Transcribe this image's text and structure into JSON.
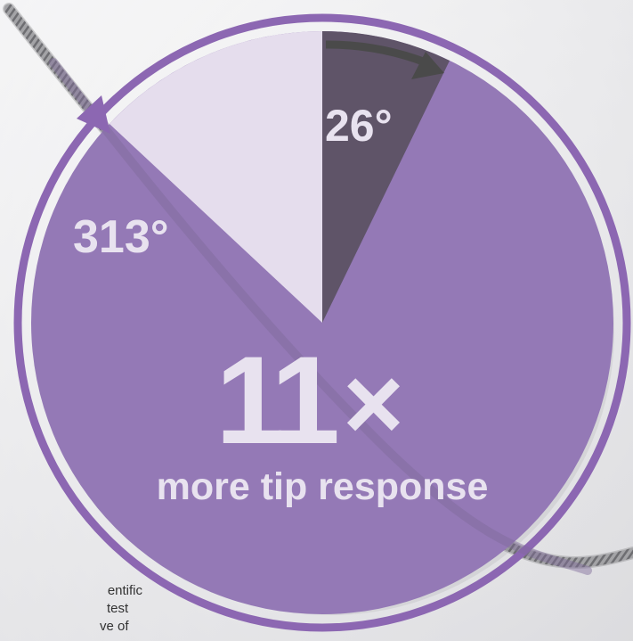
{
  "figure": {
    "colors": {
      "dial_fill": "#9479b6",
      "comparison_wedge": "#e5dded",
      "small_wedge": "#5f5468",
      "ring_stroke": "#8c67b2",
      "label_light": "#e8e2ef",
      "arrow_dark": "#4a4a4a",
      "cable": "#9a9a9a"
    },
    "angle_small": "26°",
    "angle_large": "313°",
    "multiplier_number": "11",
    "multiplier_sign": "×",
    "tagline": "more tip response"
  },
  "footnote": {
    "lines": [
      "entific",
      "test",
      "ve of"
    ]
  }
}
